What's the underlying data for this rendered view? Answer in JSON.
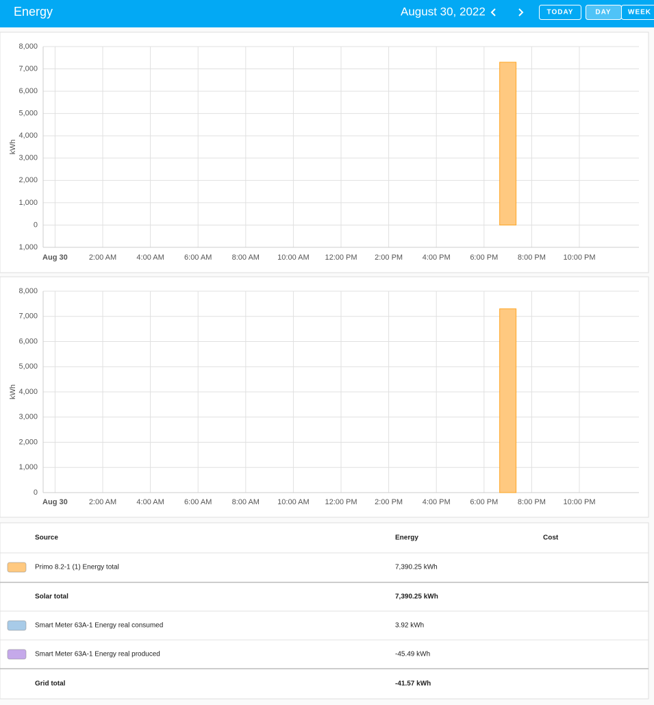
{
  "header": {
    "title": "Energy",
    "date": "August 30, 2022",
    "buttons": [
      "TODAY",
      "DAY",
      "WEEK"
    ]
  },
  "chart_data": [
    {
      "type": "bar",
      "y_label": "kWh",
      "x": [
        19
      ],
      "series": [
        {
          "color": "#ffc980",
          "values": [
            7300
          ]
        }
      ],
      "xlim": [
        -0.5,
        24.5
      ],
      "xticks": [
        {
          "value": 0,
          "label": "Aug 30"
        },
        {
          "value": 2,
          "label": "2:00 AM"
        },
        {
          "value": 4,
          "label": "4:00 AM"
        },
        {
          "value": 6,
          "label": "6:00 AM"
        },
        {
          "value": 8,
          "label": "8:00 AM"
        },
        {
          "value": 10,
          "label": "10:00 AM"
        },
        {
          "value": 12,
          "label": "12:00 PM"
        },
        {
          "value": 14,
          "label": "2:00 PM"
        },
        {
          "value": 16,
          "label": "4:00 PM"
        },
        {
          "value": 18,
          "label": "6:00 PM"
        },
        {
          "value": 20,
          "label": "8:00 PM"
        },
        {
          "value": 22,
          "label": "10:00 PM"
        }
      ],
      "ylim": [
        -1000,
        8000
      ],
      "yticks": [
        {
          "value": -1000,
          "label": "1,000"
        },
        0,
        {
          "value": 1000,
          "label": "1,000"
        },
        {
          "value": 2000,
          "label": "2,000"
        },
        {
          "value": 3000,
          "label": "3,000"
        },
        {
          "value": 4000,
          "label": "4,000"
        },
        {
          "value": 5000,
          "label": "5,000"
        },
        {
          "value": 6000,
          "label": "6,000"
        },
        {
          "value": 7000,
          "label": "7,000"
        },
        {
          "value": 8000,
          "label": "8,000"
        }
      ],
      "grid": true
    },
    {
      "type": "bar",
      "y_label": "kWh",
      "x": [
        19
      ],
      "series": [
        {
          "color": "#ffc980",
          "values": [
            7300
          ]
        }
      ],
      "xlim": [
        -0.5,
        24.5
      ],
      "xticks": [
        {
          "value": 0,
          "label": "Aug 30"
        },
        {
          "value": 2,
          "label": "2:00 AM"
        },
        {
          "value": 4,
          "label": "4:00 AM"
        },
        {
          "value": 6,
          "label": "6:00 AM"
        },
        {
          "value": 8,
          "label": "8:00 AM"
        },
        {
          "value": 10,
          "label": "10:00 AM"
        },
        {
          "value": 12,
          "label": "12:00 PM"
        },
        {
          "value": 14,
          "label": "2:00 PM"
        },
        {
          "value": 16,
          "label": "4:00 PM"
        },
        {
          "value": 18,
          "label": "6:00 PM"
        },
        {
          "value": 20,
          "label": "8:00 PM"
        },
        {
          "value": 22,
          "label": "10:00 PM"
        }
      ],
      "ylim": [
        0,
        8000
      ],
      "yticks": [
        0,
        {
          "value": 1000,
          "label": "1,000"
        },
        {
          "value": 2000,
          "label": "2,000"
        },
        {
          "value": 3000,
          "label": "3,000"
        },
        {
          "value": 4000,
          "label": "4,000"
        },
        {
          "value": 5000,
          "label": "5,000"
        },
        {
          "value": 6000,
          "label": "6,000"
        },
        {
          "value": 7000,
          "label": "7,000"
        },
        {
          "value": 8000,
          "label": "8,000"
        }
      ],
      "grid": true
    }
  ],
  "table": {
    "columns": [
      "Source",
      "Energy",
      "Cost"
    ],
    "rows": [
      {
        "color": "#ffc980",
        "source": "Primo 8.2-1 (1) Energy total",
        "energy": "7,390.25 kWh"
      },
      {
        "source": "Solar total",
        "energy": "7,390.25 kWh"
      },
      {
        "color": "#a8cbe8",
        "source": "Smart Meter 63A-1 Energy real consumed",
        "energy": "3.92 kWh"
      },
      {
        "color": "#c5a9ea",
        "source": "Smart Meter 63A-1 Energy real produced",
        "energy": "-45.49 kWh"
      },
      {
        "source": "Grid total",
        "energy": "-41.57 kWh"
      }
    ]
  }
}
